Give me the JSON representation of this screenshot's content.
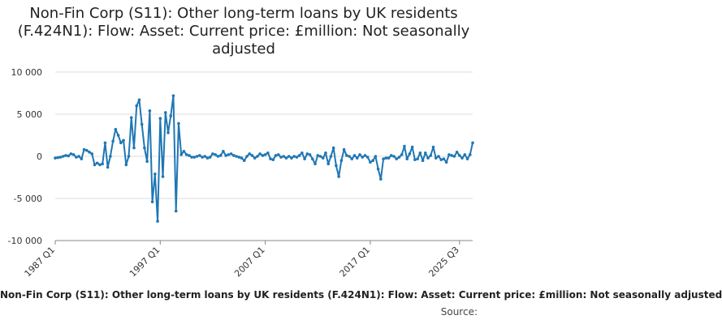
{
  "chart_data": {
    "type": "line",
    "title": "Non-Fin Corp (S11): Other long-term loans by UK residents (F.424N1): Flow: Asset: Current price: £million: Not seasonally adjusted",
    "xlabel": "Non-Fin Corp (S11): Other long-term loans by UK residents (F.424N1): Flow: Asset: Current price: £million: Not seasonally adjusted",
    "ylabel": "",
    "source_label": "Source:",
    "ylim": [
      -10000,
      10000
    ],
    "y_ticks": [
      10000,
      5000,
      0,
      -5000,
      -10000
    ],
    "y_tick_labels": [
      "10 000",
      "5 000",
      "0",
      "-5 000",
      "-10 000"
    ],
    "x_tick_labels": [
      "1987 Q1",
      "1997 Q1",
      "2007 Q1",
      "2017 Q1",
      "2025 Q3"
    ],
    "x_tick_index": [
      0,
      40,
      80,
      120,
      154
    ],
    "grid": "horizontal",
    "line_color": "#1f77b4",
    "grid_color": "#dddddd",
    "series": [
      {
        "x_start": "1987 Q1",
        "frequency": "quarterly",
        "values": [
          -200,
          -150,
          -100,
          0,
          100,
          50,
          300,
          200,
          -100,
          0,
          -300,
          800,
          700,
          500,
          300,
          -1000,
          -800,
          -1000,
          -900,
          1600,
          -1300,
          0,
          1800,
          3200,
          2500,
          1600,
          1900,
          -1000,
          0,
          4600,
          1000,
          6000,
          6700,
          3800,
          1000,
          -600,
          5400,
          -5400,
          -2100,
          -7700,
          4500,
          -2400,
          5200,
          2800,
          4800,
          7200,
          -6500,
          3900,
          200,
          600,
          200,
          100,
          -100,
          -100,
          0,
          100,
          -100,
          0,
          -200,
          -100,
          300,
          200,
          0,
          100,
          600,
          100,
          200,
          300,
          100,
          0,
          -100,
          -200,
          -500,
          0,
          300,
          100,
          -200,
          0,
          300,
          100,
          200,
          400,
          -300,
          -400,
          100,
          200,
          -100,
          0,
          -200,
          0,
          -200,
          0,
          -100,
          100,
          400,
          -300,
          300,
          200,
          -300,
          -900,
          100,
          0,
          -200,
          400,
          -900,
          0,
          1000,
          -1100,
          -2400,
          -500,
          800,
          100,
          0,
          -300,
          100,
          -200,
          200,
          -100,
          100,
          -100,
          -700,
          -500,
          0,
          -1500,
          -2700,
          -300,
          -200,
          -200,
          100,
          0,
          -300,
          -100,
          200,
          1200,
          -300,
          300,
          1100,
          -400,
          -300,
          400,
          -500,
          400,
          -200,
          100,
          1100,
          -200,
          0,
          -400,
          -300,
          -700,
          200,
          100,
          0,
          500,
          100,
          -200,
          200,
          -300,
          200,
          1600
        ]
      }
    ]
  }
}
